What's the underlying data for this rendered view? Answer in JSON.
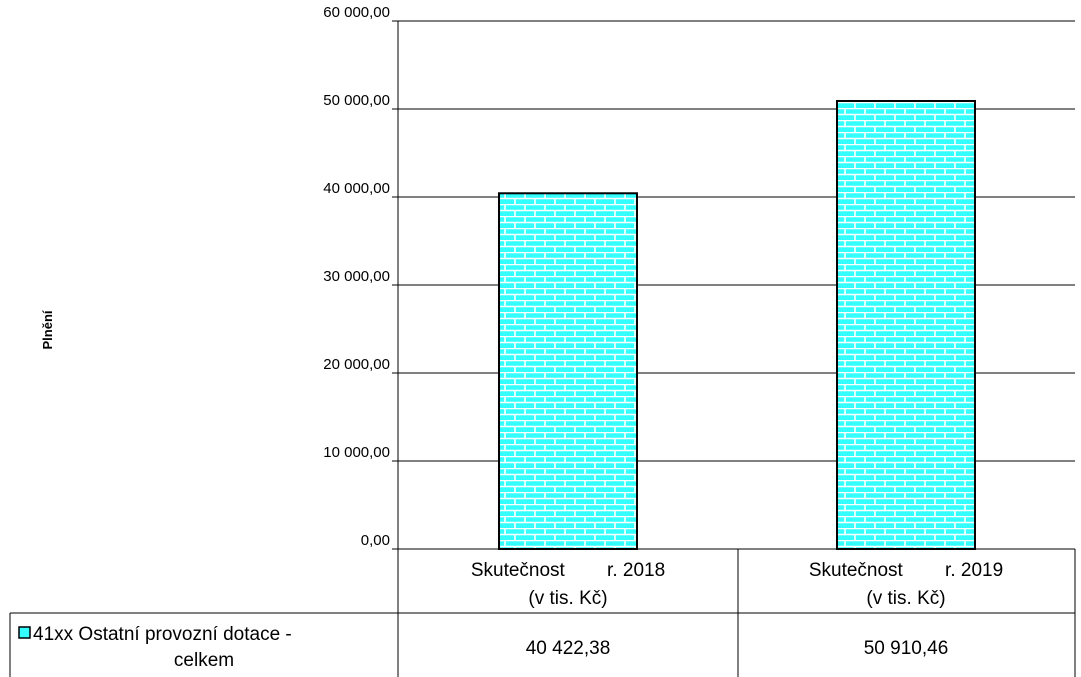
{
  "chart_data": {
    "type": "bar",
    "ylabel": "Plnění",
    "ylim": [
      0,
      60000
    ],
    "ytick_labels": [
      "0,00",
      "10 000,00",
      "20 000,00",
      "30 000,00",
      "40 000,00",
      "50 000,00",
      "60 000,00"
    ],
    "categories": [
      [
        "Skutečnost        r. 2018",
        "(v tis. Kč)"
      ],
      [
        "Skutečnost        r. 2019",
        "(v tis. Kč)"
      ]
    ],
    "series": [
      {
        "name": [
          "41xx Ostatní provozní dotace -",
          "celkem"
        ],
        "values": [
          40422.38,
          50910.46
        ],
        "value_labels": [
          "40 422,38",
          "50 910,46"
        ],
        "color": "#33ffff",
        "pattern": "brick"
      }
    ],
    "grid": true,
    "legend": "data-table"
  }
}
